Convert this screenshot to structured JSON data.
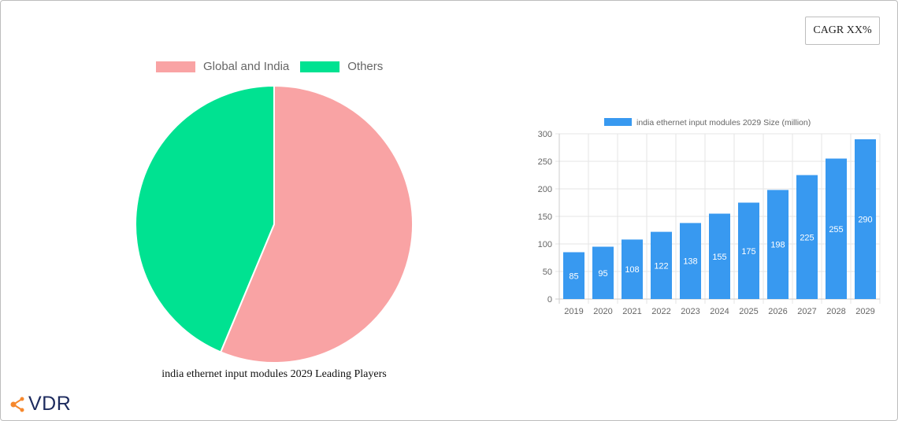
{
  "cagr_button": {
    "label": "CAGR XX%"
  },
  "pie": {
    "title": "india ethernet input modules 2029 Leading Players",
    "legend": [
      {
        "label": "Global and India",
        "color": "#f9a3a4"
      },
      {
        "label": "Others",
        "color": "#00e291"
      }
    ]
  },
  "bar": {
    "legend_label": "india ethernet input modules 2029 Size (million)",
    "color": "#3899f0"
  },
  "logo": {
    "text": "VDR",
    "accent": "#f6882d"
  },
  "chart_data": [
    {
      "type": "pie",
      "title": "india ethernet input modules 2029 Leading Players",
      "labels": [
        "Global and India",
        "Others"
      ],
      "values": [
        56.3,
        43.7
      ],
      "colors": [
        "#f9a3a4",
        "#00e291"
      ],
      "legend_position": "top"
    },
    {
      "type": "bar",
      "title": "",
      "categories": [
        "2019",
        "2020",
        "2021",
        "2022",
        "2023",
        "2024",
        "2025",
        "2026",
        "2027",
        "2028",
        "2029"
      ],
      "series": [
        {
          "name": "india ethernet input modules 2029 Size (million)",
          "values": [
            85,
            95,
            108,
            122,
            138,
            155,
            175,
            198,
            225,
            255,
            290
          ]
        }
      ],
      "xlabel": "",
      "ylabel": "",
      "ylim": [
        0,
        300
      ],
      "yticks": [
        0,
        50,
        100,
        150,
        200,
        250,
        300
      ],
      "grid": true,
      "data_labels": true,
      "legend_position": "top"
    }
  ]
}
